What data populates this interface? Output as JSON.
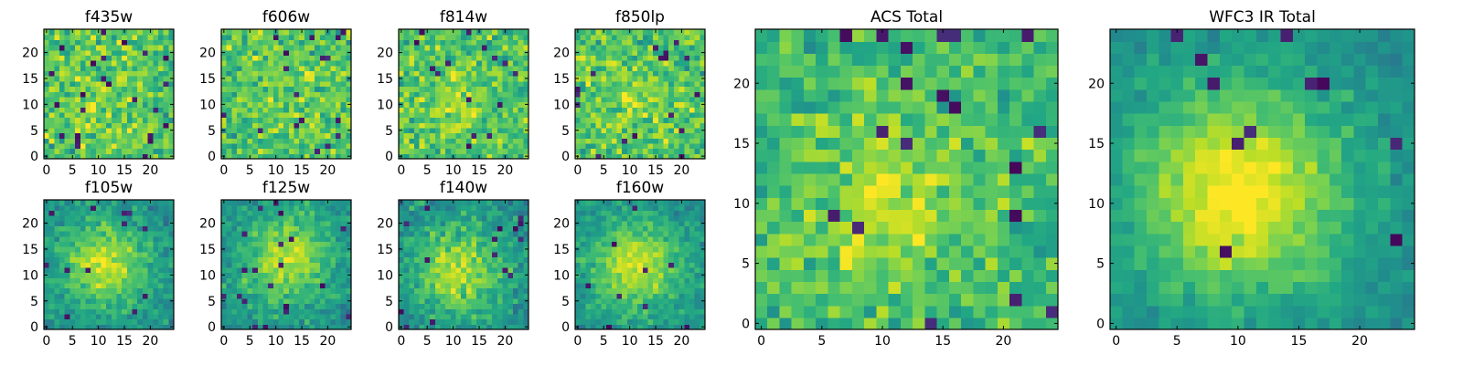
{
  "figure": {
    "type": "image-grid",
    "colormap": "viridis",
    "axis_color": "#000000",
    "background": "#ffffff"
  },
  "chart_data": [
    {
      "type": "heatmap",
      "title": "f435w",
      "xlim": [
        0,
        24
      ],
      "ylim": [
        0,
        24
      ],
      "xticks": [
        "0",
        "5",
        "10",
        "15",
        "20"
      ],
      "yticks": [
        "0",
        "5",
        "10",
        "15",
        "20"
      ],
      "grid_size": 25,
      "seed": 11,
      "texture": "noisy",
      "center": [
        10,
        10
      ],
      "blob": 0.08,
      "noise": 0.32,
      "dark_rate": 0.03
    },
    {
      "type": "heatmap",
      "title": "f606w",
      "xlim": [
        0,
        24
      ],
      "ylim": [
        0,
        24
      ],
      "xticks": [
        "0",
        "5",
        "10",
        "15",
        "20"
      ],
      "yticks": [
        "0",
        "5",
        "10",
        "15",
        "20"
      ],
      "grid_size": 25,
      "seed": 23,
      "texture": "noisy",
      "center": [
        12,
        12
      ],
      "blob": 0.08,
      "noise": 0.3,
      "dark_rate": 0.025
    },
    {
      "type": "heatmap",
      "title": "f814w",
      "xlim": [
        0,
        24
      ],
      "ylim": [
        0,
        24
      ],
      "xticks": [
        "0",
        "5",
        "10",
        "15",
        "20"
      ],
      "yticks": [
        "0",
        "5",
        "10",
        "15",
        "20"
      ],
      "grid_size": 25,
      "seed": 37,
      "texture": "noisy",
      "center": [
        11,
        11
      ],
      "blob": 0.12,
      "noise": 0.3,
      "dark_rate": 0.03
    },
    {
      "type": "heatmap",
      "title": "f850lp",
      "xlim": [
        0,
        24
      ],
      "ylim": [
        0,
        24
      ],
      "xticks": [
        "0",
        "5",
        "10",
        "15",
        "20"
      ],
      "yticks": [
        "0",
        "5",
        "10",
        "15",
        "20"
      ],
      "grid_size": 25,
      "seed": 41,
      "texture": "noisy",
      "center": [
        11,
        10
      ],
      "blob": 0.1,
      "noise": 0.3,
      "dark_rate": 0.025
    },
    {
      "type": "heatmap",
      "title": "f105w",
      "xlim": [
        0,
        24
      ],
      "ylim": [
        0,
        24
      ],
      "xticks": [
        "0",
        "5",
        "10",
        "15",
        "20"
      ],
      "yticks": [
        "0",
        "5",
        "10",
        "15",
        "20"
      ],
      "grid_size": 25,
      "seed": 53,
      "texture": "smooth",
      "center": [
        11,
        12
      ],
      "blob": 0.3,
      "noise": 0.2,
      "dark_rate": 0.02
    },
    {
      "type": "heatmap",
      "title": "f125w",
      "xlim": [
        0,
        24
      ],
      "ylim": [
        0,
        24
      ],
      "xticks": [
        "0",
        "5",
        "10",
        "15",
        "20"
      ],
      "yticks": [
        "0",
        "5",
        "10",
        "15",
        "20"
      ],
      "grid_size": 25,
      "seed": 67,
      "texture": "smooth",
      "center": [
        12,
        13
      ],
      "blob": 0.3,
      "noise": 0.2,
      "dark_rate": 0.02
    },
    {
      "type": "heatmap",
      "title": "f140w",
      "xlim": [
        0,
        24
      ],
      "ylim": [
        0,
        24
      ],
      "xticks": [
        "0",
        "5",
        "10",
        "15",
        "20"
      ],
      "yticks": [
        "0",
        "5",
        "10",
        "15",
        "20"
      ],
      "grid_size": 25,
      "seed": 79,
      "texture": "smooth",
      "center": [
        11,
        11
      ],
      "blob": 0.28,
      "noise": 0.22,
      "dark_rate": 0.025
    },
    {
      "type": "heatmap",
      "title": "f160w",
      "xlim": [
        0,
        24
      ],
      "ylim": [
        0,
        24
      ],
      "xticks": [
        "0",
        "5",
        "10",
        "15",
        "20"
      ],
      "yticks": [
        "0",
        "5",
        "10",
        "15",
        "20"
      ],
      "grid_size": 25,
      "seed": 97,
      "texture": "smooth",
      "center": [
        11,
        12
      ],
      "blob": 0.32,
      "noise": 0.18,
      "dark_rate": 0.02
    },
    {
      "type": "heatmap",
      "title": "ACS Total",
      "xlim": [
        0,
        24
      ],
      "ylim": [
        0,
        24
      ],
      "xticks": [
        "0",
        "5",
        "10",
        "15",
        "20"
      ],
      "yticks": [
        "0",
        "5",
        "10",
        "15",
        "20"
      ],
      "grid_size": 25,
      "seed": 131,
      "texture": "medium",
      "center": [
        10,
        9
      ],
      "blob": 0.18,
      "noise": 0.26,
      "dark_rate": 0.025
    },
    {
      "type": "heatmap",
      "title": "WFC3 IR Total",
      "xlim": [
        0,
        24
      ],
      "ylim": [
        0,
        24
      ],
      "xticks": [
        "0",
        "5",
        "10",
        "15",
        "20"
      ],
      "yticks": [
        "0",
        "5",
        "10",
        "15",
        "20"
      ],
      "grid_size": 25,
      "seed": 149,
      "texture": "smooth",
      "center": [
        10,
        11
      ],
      "blob": 0.42,
      "noise": 0.14,
      "dark_rate": 0.015
    }
  ]
}
